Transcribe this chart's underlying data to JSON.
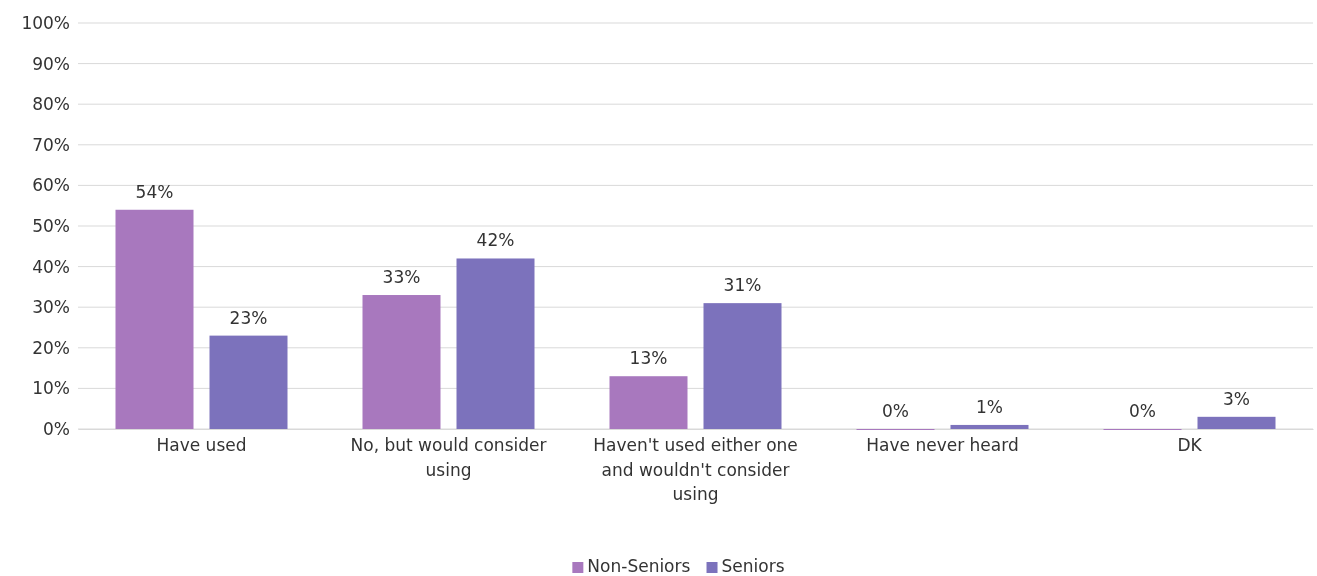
{
  "chart_data": {
    "type": "bar",
    "categories": [
      "Have used",
      "No, but would consider using",
      "Haven't used either one and wouldn't consider using",
      "Have never heard",
      "DK"
    ],
    "series": [
      {
        "name": "Non-Seniors",
        "color": "#a878be",
        "values": [
          54,
          33,
          13,
          0,
          0
        ]
      },
      {
        "name": "Seniors",
        "color": "#7c72bc",
        "values": [
          23,
          42,
          31,
          1,
          3
        ]
      }
    ],
    "ylim": [
      0,
      100
    ],
    "yticks": [
      {
        "value": 0,
        "label": "0%"
      },
      {
        "value": 10,
        "label": "10%"
      },
      {
        "value": 20,
        "label": "20%"
      },
      {
        "value": 30,
        "label": "30%"
      },
      {
        "value": 40,
        "label": "40%"
      },
      {
        "value": 50,
        "label": "50%"
      },
      {
        "value": 60,
        "label": "60%"
      },
      {
        "value": 70,
        "label": "70%"
      },
      {
        "value": 80,
        "label": "80%"
      },
      {
        "value": 90,
        "label": "90%"
      },
      {
        "value": 100,
        "label": "100%"
      }
    ],
    "value_labels": [
      [
        "54%",
        "33%",
        "13%",
        "0%",
        "0%"
      ],
      [
        "23%",
        "42%",
        "31%",
        "1%",
        "3%"
      ]
    ],
    "grid": "y",
    "legend": "bottom"
  }
}
